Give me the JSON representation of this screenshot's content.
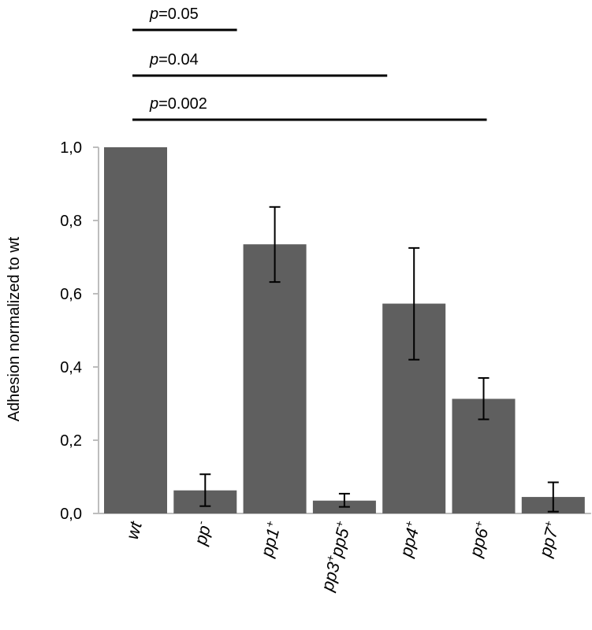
{
  "chart_data": {
    "type": "bar",
    "title": "",
    "xlabel": "",
    "ylabel": "Adhesion normalized to wt",
    "ylim": [
      0,
      1.0
    ],
    "y_ticks": [
      "0,0",
      "0,2",
      "0,4",
      "0,6",
      "0,8",
      "1,0"
    ],
    "y_tick_values": [
      0,
      0.2,
      0.4,
      0.6,
      0.8,
      1.0
    ],
    "categories": [
      {
        "parts": [
          {
            "t": "wt",
            "sup": false
          }
        ]
      },
      {
        "parts": [
          {
            "t": "pp",
            "sup": false
          },
          {
            "t": "-",
            "sup": true
          }
        ]
      },
      {
        "parts": [
          {
            "t": "pp1",
            "sup": false
          },
          {
            "t": "+",
            "sup": true
          }
        ]
      },
      {
        "parts": [
          {
            "t": "pp3",
            "sup": false
          },
          {
            "t": "+",
            "sup": true
          },
          {
            "t": "pp5",
            "sup": false
          },
          {
            "t": "+",
            "sup": true
          }
        ]
      },
      {
        "parts": [
          {
            "t": "pp4",
            "sup": false
          },
          {
            "t": "+",
            "sup": true
          }
        ]
      },
      {
        "parts": [
          {
            "t": "pp6",
            "sup": false
          },
          {
            "t": "+",
            "sup": true
          }
        ]
      },
      {
        "parts": [
          {
            "t": "pp7",
            "sup": false
          },
          {
            "t": "+",
            "sup": true
          }
        ]
      }
    ],
    "values": [
      1.0,
      0.063,
      0.735,
      0.035,
      0.573,
      0.313,
      0.045
    ],
    "error_low": [
      null,
      0.02,
      0.632,
      0.018,
      0.42,
      0.257,
      0.005
    ],
    "error_high": [
      null,
      0.107,
      0.837,
      0.054,
      0.725,
      0.37,
      0.085
    ],
    "bar_color": "#5f5f5f",
    "significance": [
      {
        "p_label": "p",
        "value_label": "=0.05",
        "from": 0,
        "to": 2
      },
      {
        "p_label": "p",
        "value_label": "=0.04",
        "from": 0,
        "to": 4
      },
      {
        "p_label": "p",
        "value_label": "=0.002",
        "from": 0,
        "to": 5
      }
    ]
  }
}
